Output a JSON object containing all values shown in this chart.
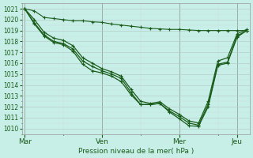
{
  "title": "Pression niveau de la mer( hPa )",
  "ylim": [
    1009.5,
    1021.5
  ],
  "yticks": [
    1010,
    1011,
    1012,
    1013,
    1014,
    1015,
    1016,
    1017,
    1018,
    1019,
    1020,
    1021
  ],
  "xtick_labels": [
    "Mar",
    "Ven",
    "Mer",
    "Jeu"
  ],
  "xtick_positions": [
    0,
    8,
    16,
    22
  ],
  "bg_color": "#c8eee8",
  "line_color": "#1a5c1a",
  "series": [
    [
      1021.0,
      1020.8,
      1020.2,
      1020.1,
      1020.0,
      1019.9,
      1019.9,
      1019.8,
      1019.75,
      1019.6,
      1019.5,
      1019.4,
      1019.3,
      1019.2,
      1019.15,
      1019.1,
      1019.1,
      1019.05,
      1019.0,
      1019.0,
      1019.0,
      1019.0,
      1019.0,
      1019.0
    ],
    [
      1021.0,
      1019.7,
      1018.6,
      1018.0,
      1017.8,
      1017.3,
      1016.2,
      1015.7,
      1015.3,
      1015.0,
      1014.6,
      1013.3,
      1012.2,
      1012.2,
      1012.3,
      1011.6,
      1011.1,
      1010.5,
      1010.3,
      1012.2,
      1015.9,
      1016.1,
      1018.5,
      1019.0
    ],
    [
      1021.0,
      1019.6,
      1018.5,
      1017.9,
      1017.7,
      1017.1,
      1015.9,
      1015.3,
      1015.1,
      1014.8,
      1014.3,
      1013.1,
      1012.2,
      1012.2,
      1012.3,
      1011.5,
      1010.9,
      1010.25,
      1010.2,
      1012.0,
      1015.8,
      1016.0,
      1018.4,
      1019.0
    ],
    [
      1021.0,
      1020.0,
      1018.85,
      1018.3,
      1018.1,
      1017.6,
      1016.5,
      1016.0,
      1015.5,
      1015.2,
      1014.8,
      1013.6,
      1012.5,
      1012.3,
      1012.45,
      1011.8,
      1011.3,
      1010.7,
      1010.5,
      1012.5,
      1016.2,
      1016.5,
      1018.7,
      1019.1
    ]
  ],
  "total_points": 24,
  "vline_color": "#888888",
  "grid_major_color": "#a8c8c0",
  "grid_minor_color": "#c0ddd8"
}
